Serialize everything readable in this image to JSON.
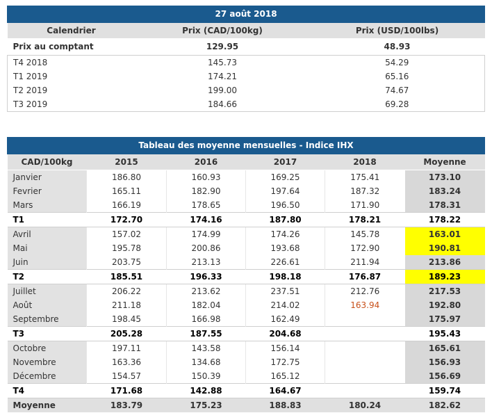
{
  "prices": {
    "title": "27 août 2018",
    "headers": [
      "Calendrier",
      "Prix (CAD/100kg)",
      "Prix (USD/100lbs)"
    ],
    "spot": {
      "label": "Prix au comptant",
      "cad": "129.95",
      "usd": "48.93"
    },
    "rows": [
      {
        "label": "T4 2018",
        "cad": "145.73",
        "usd": "54.29"
      },
      {
        "label": "T1 2019",
        "cad": "174.21",
        "usd": "65.16"
      },
      {
        "label": "T2 2019",
        "cad": "199.00",
        "usd": "74.67"
      },
      {
        "label": "T3 2019",
        "cad": "184.66",
        "usd": "69.28"
      }
    ]
  },
  "monthly": {
    "title": "Tableau des moyenne mensuelles - Indice IHX",
    "headers": [
      "CAD/100kg",
      "2015",
      "2016",
      "2017",
      "2018",
      "Moyenne"
    ],
    "rows": [
      {
        "type": "month",
        "label": "Janvier",
        "v": [
          "186.80",
          "160.93",
          "169.25",
          "175.41"
        ],
        "avg": "173.10"
      },
      {
        "type": "month",
        "label": "Fevrier",
        "v": [
          "165.11",
          "182.90",
          "197.64",
          "187.32"
        ],
        "avg": "183.24"
      },
      {
        "type": "month",
        "label": "Mars",
        "v": [
          "166.19",
          "178.65",
          "196.50",
          "171.90"
        ],
        "avg": "178.31"
      },
      {
        "type": "q",
        "label": "T1",
        "v": [
          "172.70",
          "174.16",
          "187.80",
          "178.21"
        ],
        "avg": "178.22"
      },
      {
        "type": "month",
        "label": "Avril",
        "v": [
          "157.02",
          "174.99",
          "174.26",
          "145.78"
        ],
        "avg": "163.01",
        "hl": true
      },
      {
        "type": "month",
        "label": "Mai",
        "v": [
          "195.78",
          "200.86",
          "193.68",
          "172.90"
        ],
        "avg": "190.81",
        "hl": true
      },
      {
        "type": "month",
        "label": "Juin",
        "v": [
          "203.75",
          "213.13",
          "226.61",
          "211.94"
        ],
        "avg": "213.86"
      },
      {
        "type": "q",
        "label": "T2",
        "v": [
          "185.51",
          "196.33",
          "198.18",
          "176.87"
        ],
        "avg": "189.23",
        "hl": true
      },
      {
        "type": "month",
        "label": "Juillet",
        "v": [
          "206.22",
          "213.62",
          "237.51",
          "212.76"
        ],
        "avg": "217.53"
      },
      {
        "type": "month",
        "label": "Août",
        "v": [
          "211.18",
          "182.04",
          "214.02",
          "163.94"
        ],
        "avg": "192.80",
        "orange": true
      },
      {
        "type": "month",
        "label": "Septembre",
        "v": [
          "198.45",
          "166.98",
          "162.49",
          ""
        ],
        "avg": "175.97"
      },
      {
        "type": "q",
        "label": "T3",
        "v": [
          "205.28",
          "187.55",
          "204.68",
          ""
        ],
        "avg": "195.43"
      },
      {
        "type": "month",
        "label": "Octobre",
        "v": [
          "197.11",
          "143.58",
          "156.14",
          ""
        ],
        "avg": "165.61"
      },
      {
        "type": "month",
        "label": "Novembre",
        "v": [
          "163.36",
          "134.68",
          "172.75",
          ""
        ],
        "avg": "156.93"
      },
      {
        "type": "month",
        "label": "Décembre",
        "v": [
          "154.57",
          "150.39",
          "165.12",
          ""
        ],
        "avg": "156.69"
      },
      {
        "type": "q",
        "label": "T4",
        "v": [
          "171.68",
          "142.88",
          "164.67",
          ""
        ],
        "avg": "159.74"
      },
      {
        "type": "tot",
        "label": "Moyenne",
        "v": [
          "183.79",
          "175.23",
          "188.83",
          "180.24"
        ],
        "avg": "182.62"
      }
    ]
  },
  "colors": {
    "header_blue": "#1a5a8e",
    "highlight": "#ffff00",
    "partial_month": "#c8501a"
  }
}
